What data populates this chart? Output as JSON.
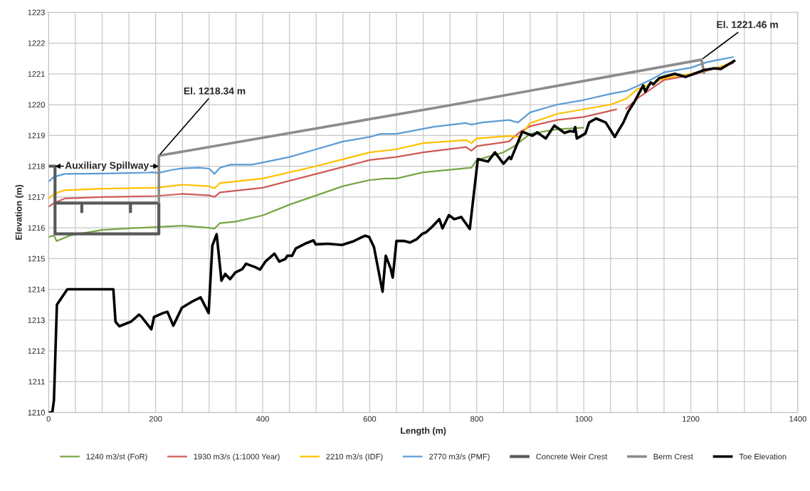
{
  "chart_data": {
    "type": "line",
    "xlabel": "Length (m)",
    "ylabel": "Elevation (m)",
    "xlim": [
      0,
      1400
    ],
    "ylim": [
      1210,
      1223
    ],
    "xticks": [
      0,
      {
        "value": 50,
        "label": null
      },
      {
        "value": 100,
        "label": null
      },
      {
        "value": 150,
        "label": null
      },
      200,
      {
        "value": 250,
        "label": null
      },
      {
        "value": 300,
        "label": null
      },
      {
        "value": 350,
        "label": null
      },
      400,
      {
        "value": 450,
        "label": null
      },
      {
        "value": 500,
        "label": null
      },
      {
        "value": 550,
        "label": null
      },
      600,
      {
        "value": 650,
        "label": null
      },
      {
        "value": 700,
        "label": null
      },
      {
        "value": 750,
        "label": null
      },
      800,
      {
        "value": 850,
        "label": null
      },
      {
        "value": 900,
        "label": null
      },
      {
        "value": 950,
        "label": null
      },
      1000,
      {
        "value": 1050,
        "label": null
      },
      {
        "value": 1100,
        "label": null
      },
      {
        "value": 1150,
        "label": null
      },
      1200,
      {
        "value": 1250,
        "label": null
      },
      {
        "value": 1300,
        "label": null
      },
      {
        "value": 1350,
        "label": null
      },
      1400
    ],
    "yticks": [
      1210,
      1211,
      1212,
      1213,
      1214,
      1215,
      1216,
      1217,
      1218,
      1219,
      1220,
      1221,
      1222,
      1223
    ],
    "grid": true,
    "legend": "bottom",
    "marker": "none",
    "line_style": "solid",
    "series": [
      {
        "name": "1240 m3/st (FoR)",
        "color": "#77a544",
        "x": [
          0,
          10,
          15,
          40,
          100,
          150,
          200,
          250,
          300,
          310,
          320,
          350,
          400,
          450,
          500,
          550,
          600,
          630,
          650,
          700,
          790,
          800,
          850,
          870,
          900,
          950,
          1000
        ],
        "values": [
          1215.7,
          1215.75,
          1215.57,
          1215.75,
          1215.93,
          1215.98,
          1216.02,
          1216.07,
          1216.0,
          1215.97,
          1216.15,
          1216.2,
          1216.4,
          1216.75,
          1217.05,
          1217.35,
          1217.55,
          1217.6,
          1217.6,
          1217.8,
          1217.95,
          1218.2,
          1218.45,
          1218.65,
          1219.05,
          1219.2,
          1219.25
        ]
      },
      {
        "name": "1930 m3/s (1:1000 Year)",
        "color": "#cf5a55",
        "x": [
          0,
          10,
          30,
          100,
          200,
          250,
          300,
          310,
          320,
          400,
          500,
          600,
          650,
          700,
          780,
          790,
          800,
          860,
          880,
          900,
          950,
          1000,
          1050,
          1062,
          1068,
          1078,
          1100,
          1150,
          1200,
          1280
        ],
        "values": [
          1216.68,
          1216.8,
          1216.95,
          1217.0,
          1217.03,
          1217.1,
          1217.05,
          1217.0,
          1217.15,
          1217.3,
          1217.75,
          1218.2,
          1218.3,
          1218.45,
          1218.62,
          1218.5,
          1218.65,
          1218.8,
          1219.1,
          1219.3,
          1219.5,
          1219.6,
          1219.8,
          1219.85,
          null,
          1219.85,
          1220.2,
          1220.8,
          1220.95,
          1221.35
        ]
      },
      {
        "name": "2210 m3/s (IDF)",
        "color": "#ffc000",
        "x": [
          0,
          10,
          30,
          100,
          200,
          250,
          300,
          310,
          320,
          400,
          500,
          600,
          650,
          700,
          780,
          790,
          800,
          860,
          880,
          900,
          950,
          1000,
          1050,
          1080,
          1100,
          1150,
          1200,
          1250,
          1280
        ],
        "values": [
          1216.95,
          1217.1,
          1217.22,
          1217.27,
          1217.3,
          1217.4,
          1217.35,
          1217.28,
          1217.45,
          1217.6,
          1218.0,
          1218.45,
          1218.55,
          1218.75,
          1218.85,
          1218.75,
          1218.9,
          1218.98,
          1218.95,
          1219.4,
          1219.7,
          1219.85,
          1220.0,
          1220.2,
          1220.5,
          1220.85,
          1221.0,
          1221.2,
          1221.38
        ]
      },
      {
        "name": "2770 m3/s (PMF)",
        "color": "#5b9bd5",
        "x": [
          0,
          10,
          30,
          100,
          150,
          195,
          205,
          230,
          250,
          280,
          300,
          310,
          320,
          340,
          380,
          400,
          450,
          500,
          550,
          600,
          620,
          650,
          680,
          720,
          780,
          790,
          810,
          860,
          877,
          900,
          950,
          1000,
          1050,
          1080,
          1100,
          1130,
          1150,
          1200,
          1230,
          1280
        ],
        "values": [
          1217.5,
          1217.65,
          1217.75,
          1217.76,
          1217.78,
          1217.8,
          1217.78,
          1217.88,
          1217.93,
          1217.95,
          1217.92,
          1217.75,
          1217.95,
          1218.05,
          1218.05,
          1218.12,
          1218.3,
          1218.55,
          1218.8,
          1218.95,
          1219.05,
          1219.05,
          1219.15,
          1219.28,
          1219.4,
          1219.35,
          1219.42,
          1219.5,
          1219.42,
          1219.75,
          1220.0,
          1220.15,
          1220.35,
          1220.45,
          1220.6,
          1220.85,
          1221.05,
          1221.2,
          1221.38,
          1221.55
        ]
      },
      {
        "name": "Concrete Weir Crest",
        "color": "#595959",
        "x": [
          0,
          12,
          12,
          206,
          206,
          12,
          null,
          62,
          62,
          null,
          153,
          153
        ],
        "values": [
          1218.0,
          1218.0,
          1215.8,
          1215.8,
          1216.8,
          1216.8,
          null,
          1216.8,
          1216.48,
          null,
          1216.8,
          1216.48
        ]
      },
      {
        "name": "Berm Crest",
        "color": "#8c8c8c",
        "x": [
          206,
          206,
          740,
          1220,
          1225
        ],
        "values": [
          1216.8,
          1218.34,
          1219.95,
          1221.46,
          1221.0
        ]
      },
      {
        "name": "Toe Elevation",
        "color": "#000000",
        "x": [
          0,
          7,
          10,
          15.5,
          35,
          121,
          125,
          132,
          154,
          169,
          174,
          192,
          197,
          214,
          222,
          233,
          249,
          270,
          284,
          299,
          306,
          314,
          323,
          330,
          339,
          349,
          362,
          369,
          375,
          386,
          395,
          405,
          422,
          431,
          442,
          446,
          455,
          462,
          479,
          495,
          499,
          522,
          548,
          568,
          591,
          599,
          608,
          624,
          630,
          639,
          643,
          650,
          665,
          675,
          688,
          698,
          705,
          716,
          730,
          736,
          748,
          758,
          771,
          787,
          802,
          821,
          834,
          850,
          861,
          864,
          885,
          904,
          913,
          929,
          945,
          964,
          974,
          981,
          984,
          987,
          1003,
          1010,
          1023,
          1041,
          1058,
          1063,
          1074,
          1083,
          1094,
          1111,
          1115,
          1125,
          1130,
          1141,
          1170,
          1190,
          1224,
          1244,
          1256,
          1283
        ],
        "values": [
          1210.0,
          1210.0,
          1210.4,
          1213.5,
          1214.0,
          1214.0,
          1212.95,
          1212.8,
          1212.95,
          1213.18,
          1213.1,
          1212.7,
          1213.1,
          1213.23,
          1213.27,
          1212.82,
          1213.4,
          1213.62,
          1213.74,
          1213.23,
          1215.42,
          1215.79,
          1214.28,
          1214.5,
          1214.33,
          1214.55,
          1214.66,
          1214.83,
          1214.79,
          1214.72,
          1214.64,
          1214.9,
          1215.16,
          1214.9,
          1214.98,
          1215.09,
          1215.09,
          1215.33,
          1215.48,
          1215.59,
          1215.46,
          1215.48,
          1215.44,
          1215.55,
          1215.74,
          1215.7,
          1215.37,
          1213.92,
          1215.09,
          1214.68,
          1214.38,
          1215.57,
          1215.57,
          1215.52,
          1215.63,
          1215.8,
          1215.85,
          1216.02,
          1216.28,
          1215.98,
          1216.41,
          1216.28,
          1216.35,
          1215.96,
          1218.23,
          1218.15,
          1218.45,
          1218.08,
          1218.3,
          1218.23,
          1219.12,
          1218.99,
          1219.1,
          1218.9,
          1219.32,
          1219.08,
          1219.14,
          1219.12,
          1219.27,
          1218.9,
          1219.06,
          1219.42,
          1219.55,
          1219.42,
          1218.95,
          1219.1,
          1219.42,
          1219.77,
          1220.07,
          1220.62,
          1220.42,
          1220.72,
          1220.66,
          1220.86,
          1221.0,
          1220.9,
          1221.12,
          1221.18,
          1221.16,
          1221.44
        ]
      }
    ],
    "annotations": [
      {
        "text": "El. 1218.34 m",
        "x": 206,
        "y": 1218.34
      },
      {
        "text": "El. 1221.46 m",
        "x": 1220,
        "y": 1221.46
      },
      "Auxiliary Spillway"
    ]
  }
}
